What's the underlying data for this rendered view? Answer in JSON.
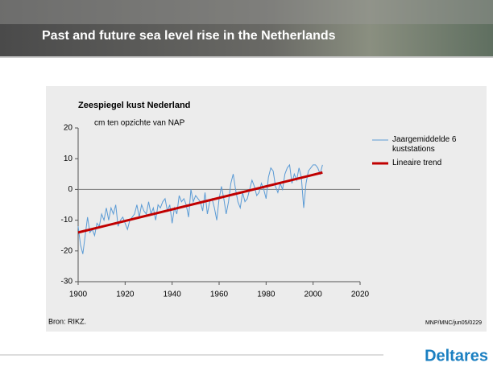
{
  "slide_title": "Past and future sea level rise in the Netherlands",
  "chart_data": {
    "type": "line",
    "title": "Zeespiegel kust Nederland",
    "y_label": "cm ten opzichte van NAP",
    "xlim": [
      1900,
      2020
    ],
    "xticks": [
      1900,
      1920,
      1940,
      1960,
      1980,
      2000,
      2020
    ],
    "ylim": [
      -30,
      20
    ],
    "yticks": [
      -30,
      -20,
      -10,
      0,
      10,
      20
    ],
    "zero_line": true,
    "series": [
      {
        "name": "Jaargemiddelde 6 kuststations",
        "color": "#5b9bd5",
        "width": 1,
        "x": [
          1900,
          1901,
          1902,
          1903,
          1904,
          1905,
          1906,
          1907,
          1908,
          1909,
          1910,
          1911,
          1912,
          1913,
          1914,
          1915,
          1916,
          1917,
          1918,
          1919,
          1920,
          1921,
          1922,
          1923,
          1924,
          1925,
          1926,
          1927,
          1928,
          1929,
          1930,
          1931,
          1932,
          1933,
          1934,
          1935,
          1936,
          1937,
          1938,
          1939,
          1940,
          1941,
          1942,
          1943,
          1944,
          1945,
          1946,
          1947,
          1948,
          1949,
          1950,
          1951,
          1952,
          1953,
          1954,
          1955,
          1956,
          1957,
          1958,
          1959,
          1960,
          1961,
          1962,
          1963,
          1964,
          1965,
          1966,
          1967,
          1968,
          1969,
          1970,
          1971,
          1972,
          1973,
          1974,
          1975,
          1976,
          1977,
          1978,
          1979,
          1980,
          1981,
          1982,
          1983,
          1984,
          1985,
          1986,
          1987,
          1988,
          1989,
          1990,
          1991,
          1992,
          1993,
          1994,
          1995,
          1996,
          1997,
          1998,
          1999,
          2000,
          2001,
          2002,
          2003,
          2004
        ],
        "values": [
          -12,
          -18,
          -21,
          -15,
          -9,
          -14,
          -13,
          -15,
          -11,
          -12,
          -8,
          -10,
          -6,
          -10,
          -6,
          -8,
          -5,
          -12,
          -10,
          -9,
          -11,
          -13,
          -10,
          -9,
          -8,
          -5,
          -9,
          -5,
          -7,
          -8,
          -4,
          -8,
          -6,
          -10,
          -5,
          -6,
          -4,
          -3,
          -7,
          -5,
          -11,
          -6,
          -8,
          -2,
          -4,
          -3,
          -5,
          -9,
          0,
          -4,
          -2,
          -3,
          -4,
          -7,
          -1,
          -8,
          -4,
          -3,
          -6,
          -10,
          -3,
          1,
          -3,
          -8,
          -4,
          2,
          5,
          0,
          -4,
          -6,
          -1,
          -4,
          -3,
          0,
          3,
          1,
          -2,
          -1,
          2,
          0,
          -3,
          4,
          7,
          6,
          1,
          -1,
          2,
          0,
          5,
          7,
          8,
          2,
          5,
          3,
          7,
          4,
          -6,
          2,
          6,
          7,
          8,
          8,
          7,
          5,
          8
        ]
      },
      {
        "name": "Lineaire trend",
        "color": "#c00000",
        "width": 3,
        "x": [
          1900,
          2004
        ],
        "values": [
          -14,
          5.5
        ]
      }
    ]
  },
  "source": "Bron: RIKZ.",
  "credit": "MNP/MNC/jun05/0229",
  "logo": "Deltares"
}
